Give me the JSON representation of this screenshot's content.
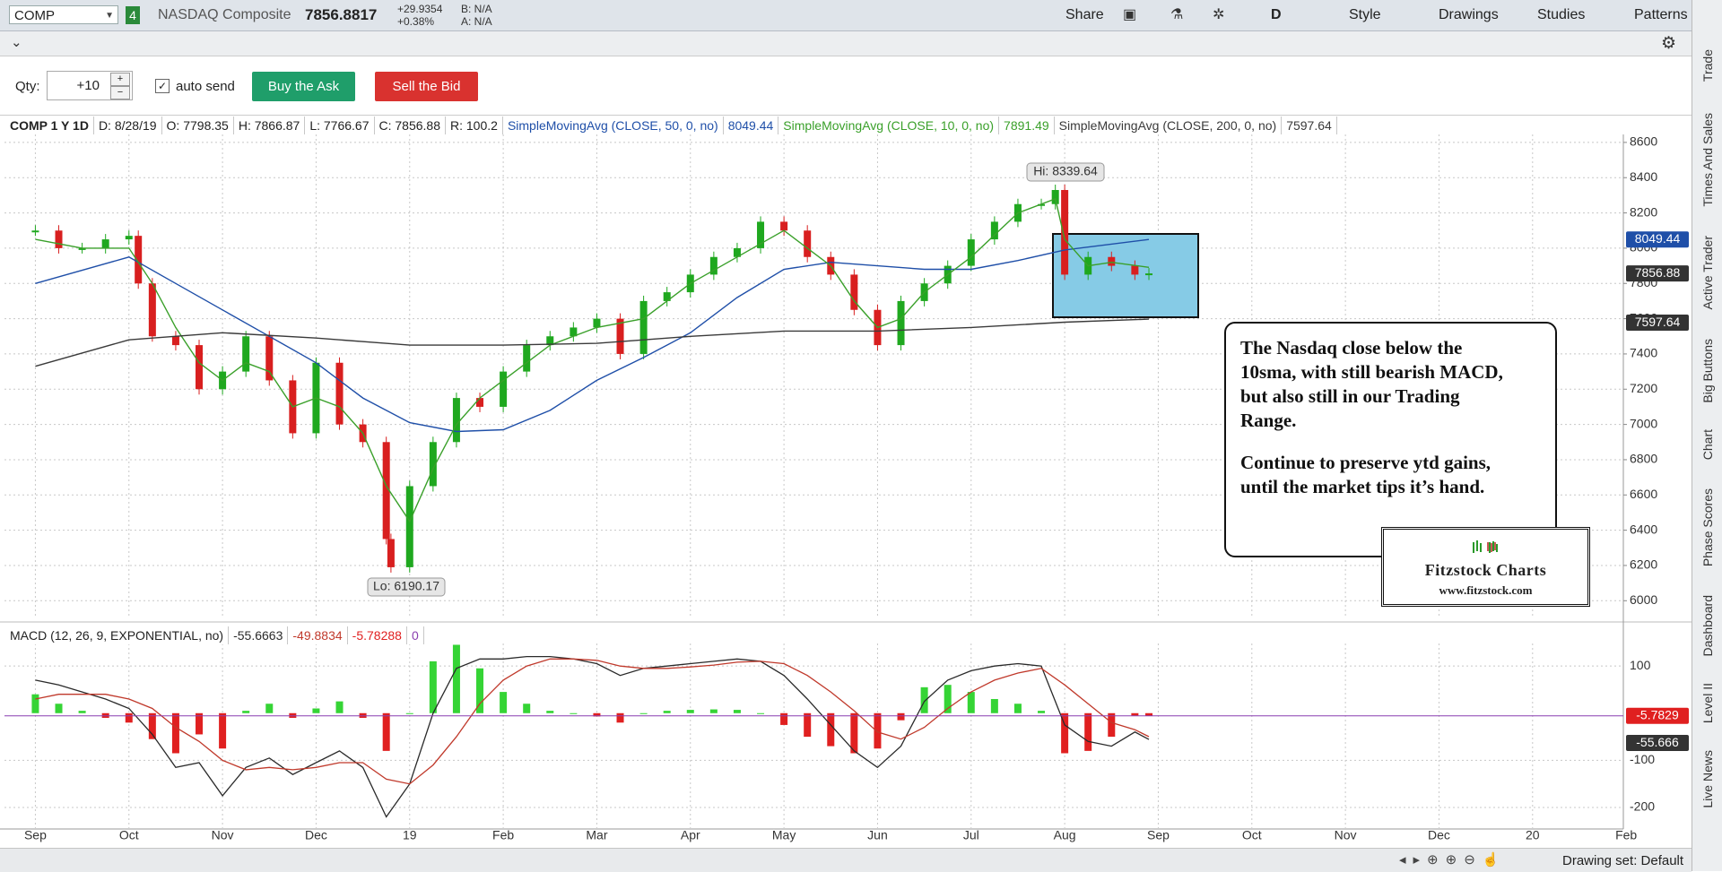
{
  "toolbar": {
    "symbol": "COMP",
    "link_group": "4",
    "description": "NASDAQ Composite",
    "last": "7856.8817",
    "net_change": "+29.9354",
    "pct_change": "+0.38%",
    "bid": "B: N/A",
    "ask": "A: N/A",
    "buttons": [
      "Share",
      "D",
      "Style",
      "Drawings",
      "Studies",
      "Patterns"
    ]
  },
  "order_bar": {
    "qty_label": "Qty:",
    "qty": "+10",
    "auto_send": "auto send",
    "buy": "Buy the Ask",
    "sell": "Sell the Bid"
  },
  "chart_header": {
    "symbol": "COMP 1 Y 1D",
    "fields": [
      "D: 8/28/19",
      "O: 7798.35",
      "H: 7866.87",
      "L: 7766.67",
      "C: 7856.88",
      "R: 100.2"
    ],
    "study_values": [
      "8049.44",
      "7891.49",
      "7597.64"
    ]
  },
  "chart_data": [
    {
      "type": "line",
      "ylim": [
        5910,
        8630
      ],
      "yticks": [
        6000,
        6200,
        6400,
        6600,
        6800,
        7000,
        7200,
        7400,
        7600,
        7800,
        8000,
        8200,
        8400,
        8600
      ],
      "xlim": [
        -0.33,
        16.97
      ],
      "xticks": [
        {
          "value": 0,
          "label": "Sep"
        },
        {
          "value": 1,
          "label": "Oct"
        },
        {
          "value": 2,
          "label": "Nov"
        },
        {
          "value": 3,
          "label": "Dec"
        },
        {
          "value": 4,
          "label": "19"
        },
        {
          "value": 5,
          "label": "Feb"
        },
        {
          "value": 6,
          "label": "Mar"
        },
        {
          "value": 7,
          "label": "Apr"
        },
        {
          "value": 8,
          "label": "May"
        },
        {
          "value": 9,
          "label": "Jun"
        },
        {
          "value": 10,
          "label": "Jul"
        },
        {
          "value": 11,
          "label": "Aug"
        },
        {
          "value": 12,
          "label": "Sep"
        },
        {
          "value": 13,
          "label": "Oct"
        },
        {
          "value": 14,
          "label": "Nov"
        },
        {
          "value": 15,
          "label": "Dec"
        },
        {
          "value": 16,
          "label": "20"
        },
        {
          "value": 17,
          "label": "Feb"
        }
      ],
      "grid": true,
      "series": [
        {
          "up_color": "#1fa81f",
          "down_color": "#d81f1f",
          "x": [
            0,
            0.25,
            0.5,
            0.75,
            1,
            1.1,
            1.25,
            1.5,
            1.75,
            2,
            2.25,
            2.5,
            2.75,
            3,
            3.25,
            3.5,
            3.75,
            3.8,
            4,
            4.25,
            4.5,
            4.75,
            5,
            5.25,
            5.5,
            5.75,
            6,
            6.25,
            6.5,
            6.75,
            7,
            7.25,
            7.5,
            7.75,
            8,
            8.25,
            8.5,
            8.75,
            9,
            9.25,
            9.5,
            9.75,
            10,
            10.25,
            10.5,
            10.75,
            10.9,
            11,
            11.25,
            11.5,
            11.75,
            11.9
          ],
          "values": [
            8100,
            8000,
            8000,
            8050,
            8070,
            7800,
            7500,
            7450,
            7200,
            7300,
            7500,
            7250,
            6950,
            7350,
            7000,
            6900,
            6350,
            6190,
            6650,
            6900,
            7150,
            7100,
            7300,
            7450,
            7500,
            7550,
            7600,
            7400,
            7700,
            7750,
            7850,
            7950,
            8000,
            8150,
            8100,
            7950,
            7850,
            7650,
            7450,
            7700,
            7800,
            7900,
            8050,
            8150,
            8250,
            8250,
            8330,
            7850,
            7950,
            7900,
            7850,
            7856.88
          ]
        },
        {
          "name": "SimpleMovingAvg (CLOSE, 50, 0, no)",
          "color": "#1f4fa8",
          "x": [
            0,
            1,
            1.5,
            2,
            2.5,
            3,
            3.5,
            4,
            4.5,
            5,
            5.5,
            6,
            6.5,
            7,
            7.5,
            8,
            8.5,
            9,
            9.5,
            10,
            10.5,
            11,
            11.9
          ],
          "values": [
            7800,
            7950,
            7800,
            7650,
            7500,
            7350,
            7150,
            7010,
            6960,
            6970,
            7080,
            7250,
            7380,
            7520,
            7720,
            7880,
            7920,
            7900,
            7880,
            7880,
            7930,
            7990,
            8049.44
          ]
        },
        {
          "name": "SimpleMovingAvg (CLOSE, 10, 0, no)",
          "color": "#3aa02a",
          "x": [
            0,
            0.5,
            1,
            1.25,
            1.5,
            1.75,
            2,
            2.25,
            2.5,
            2.75,
            3,
            3.25,
            3.5,
            3.75,
            4,
            4.25,
            4.5,
            4.75,
            5,
            5.5,
            6,
            6.5,
            7,
            7.5,
            8,
            8.25,
            8.5,
            8.75,
            9,
            9.25,
            9.5,
            10,
            10.5,
            10.9,
            11,
            11.25,
            11.5,
            11.9
          ],
          "values": [
            8050,
            8000,
            8000,
            7800,
            7550,
            7350,
            7250,
            7350,
            7300,
            7100,
            7150,
            7100,
            6950,
            6650,
            6450,
            6750,
            7000,
            7150,
            7250,
            7450,
            7550,
            7600,
            7800,
            7950,
            8100,
            8000,
            7900,
            7700,
            7550,
            7600,
            7750,
            7950,
            8200,
            8280,
            8050,
            7900,
            7920,
            7891.49
          ]
        },
        {
          "name": "SimpleMovingAvg (CLOSE, 200, 0, no)",
          "color": "#3a3a3a",
          "x": [
            0,
            1,
            2,
            3,
            4,
            5,
            6,
            7,
            8,
            9,
            10,
            11,
            11.9
          ],
          "values": [
            7330,
            7480,
            7520,
            7490,
            7450,
            7450,
            7460,
            7500,
            7530,
            7530,
            7550,
            7580,
            7597.64
          ]
        }
      ],
      "last_labels": [
        "8049.44",
        "7856.88",
        "7597.64"
      ],
      "high_label": "Hi: 8339.64",
      "low_label": "Lo: 6190.17"
    },
    {
      "type": "macd",
      "title": "MACD (12, 26, 9, EXPONENTIAL, no)",
      "header_values": [
        "-55.6663",
        "-49.8834",
        "-5.78288",
        "0"
      ],
      "ylim": [
        -238,
        144
      ],
      "yticks": [
        100,
        -100,
        -200
      ],
      "x": [
        0,
        0.25,
        0.5,
        0.75,
        1,
        1.25,
        1.5,
        1.75,
        2,
        2.25,
        2.5,
        2.75,
        3,
        3.25,
        3.5,
        3.75,
        4,
        4.25,
        4.5,
        4.75,
        5,
        5.25,
        5.5,
        5.75,
        6,
        6.25,
        6.5,
        6.75,
        7,
        7.25,
        7.5,
        7.75,
        8,
        8.25,
        8.5,
        8.75,
        9,
        9.25,
        9.5,
        9.75,
        10,
        10.25,
        10.5,
        10.75,
        11,
        11.25,
        11.5,
        11.75,
        11.9
      ],
      "series": [
        {
          "type": "histogram",
          "up_color": "#35d435",
          "down_color": "#e02020",
          "values": [
            40,
            20,
            5,
            -10,
            -20,
            -55,
            -85,
            -45,
            -75,
            5,
            20,
            -10,
            10,
            25,
            -10,
            -80,
            0,
            110,
            145,
            95,
            45,
            20,
            5,
            0,
            -7,
            -20,
            0,
            5,
            7,
            8,
            7,
            0,
            -25,
            -50,
            -70,
            -85,
            -75,
            -15,
            55,
            60,
            45,
            30,
            20,
            5,
            -85,
            -80,
            -50,
            -5,
            -5.78288
          ]
        },
        {
          "type": "line",
          "color": "#2a2a2a",
          "values": [
            70,
            60,
            45,
            30,
            10,
            -45,
            -115,
            -105,
            -175,
            -115,
            -95,
            -130,
            -105,
            -80,
            -115,
            -220,
            -150,
            0,
            95,
            115,
            115,
            120,
            120,
            115,
            105,
            80,
            95,
            100,
            105,
            110,
            115,
            110,
            80,
            30,
            -25,
            -80,
            -115,
            -70,
            25,
            70,
            90,
            100,
            105,
            100,
            -25,
            -60,
            -70,
            -40,
            -55.6663
          ]
        },
        {
          "type": "line",
          "color": "#c0392b",
          "values": [
            30,
            40,
            40,
            40,
            30,
            10,
            -30,
            -60,
            -100,
            -120,
            -115,
            -120,
            -115,
            -105,
            -105,
            -140,
            -150,
            -110,
            -50,
            20,
            70,
            100,
            115,
            115,
            112,
            100,
            95,
            95,
            98,
            102,
            108,
            110,
            105,
            80,
            45,
            5,
            -40,
            -55,
            -30,
            10,
            45,
            70,
            85,
            95,
            60,
            20,
            -20,
            -35,
            -49.8834
          ]
        }
      ],
      "zero_line_color": "#8a3fb0",
      "last_labels": [
        "-5.7829",
        "-55.666"
      ]
    }
  ],
  "annotations": {
    "note": [
      "The Nasdaq close below the 10sma, with still bearish MACD, but also still in our Trading Range.",
      "Continue to preserve ytd gains, until the market tips it’s hand."
    ],
    "logo_name": "Fitzstock Charts",
    "logo_url": "www.fitzstock.com"
  },
  "side_tabs": [
    "Trade",
    "Times And Sales",
    "Active Trader",
    "Big Buttons",
    "Chart",
    "Phase Scores",
    "Dashboard",
    "Level II",
    "Live News"
  ],
  "status_bar": {
    "drawing_set": "Drawing set: Default"
  }
}
